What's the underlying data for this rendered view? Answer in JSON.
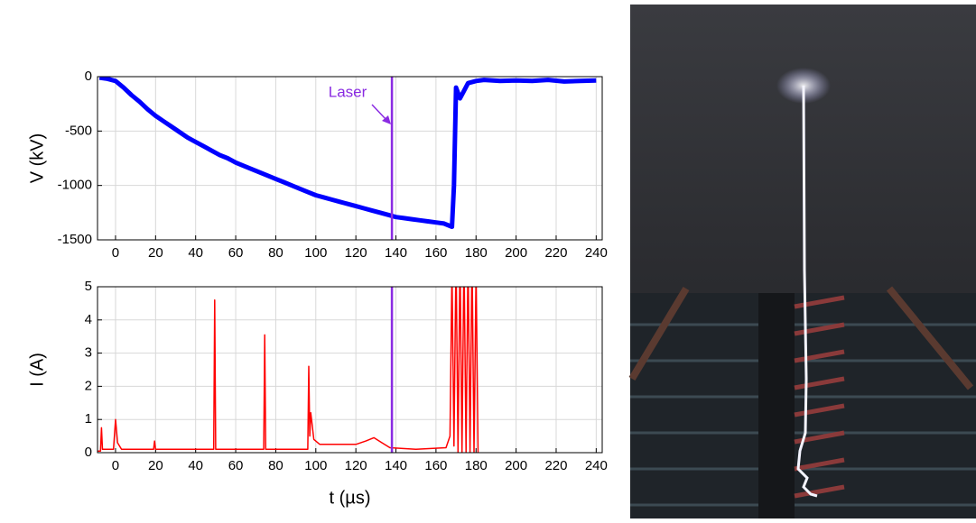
{
  "chart_data": [
    {
      "type": "line",
      "ylabel": "V (kV)",
      "annotation": "Laser",
      "vline_x": 138,
      "vline_color": "#8a2be2",
      "xlim": [
        -9,
        243
      ],
      "xticks": [
        0,
        20,
        40,
        60,
        80,
        100,
        120,
        140,
        160,
        180,
        200,
        220,
        240
      ],
      "ylim": [
        -1500,
        0
      ],
      "yticks": [
        0,
        -500,
        -1000,
        -1500
      ],
      "grid": true,
      "x": [
        -8,
        -4,
        0,
        4,
        8,
        12,
        16,
        20,
        24,
        28,
        32,
        36,
        40,
        44,
        48,
        52,
        56,
        60,
        64,
        68,
        72,
        76,
        80,
        84,
        88,
        92,
        96,
        100,
        104,
        108,
        112,
        116,
        120,
        124,
        128,
        132,
        136,
        140,
        144,
        148,
        152,
        156,
        160,
        164,
        168,
        169,
        170,
        172,
        176,
        180,
        184,
        192,
        200,
        208,
        216,
        224,
        232,
        240
      ],
      "series": [
        {
          "color": "#0000ff",
          "values": [
            -10,
            -20,
            -40,
            -100,
            -170,
            -230,
            -300,
            -360,
            -410,
            -460,
            -510,
            -560,
            -600,
            -640,
            -680,
            -720,
            -750,
            -790,
            -820,
            -850,
            -880,
            -910,
            -940,
            -970,
            -1000,
            -1030,
            -1060,
            -1090,
            -1110,
            -1130,
            -1150,
            -1170,
            -1190,
            -1210,
            -1230,
            -1250,
            -1270,
            -1290,
            -1300,
            -1310,
            -1320,
            -1330,
            -1340,
            -1350,
            -1380,
            -1000,
            -100,
            -200,
            -60,
            -40,
            -30,
            -40,
            -35,
            -40,
            -30,
            -45,
            -40,
            -35
          ]
        }
      ]
    },
    {
      "type": "line",
      "ylabel": "I (A)",
      "xlabel": "t (µs)",
      "vline_x": 138,
      "vline_color": "#8a2be2",
      "xlim": [
        -9,
        243
      ],
      "xticks": [
        0,
        20,
        40,
        60,
        80,
        100,
        120,
        140,
        160,
        180,
        200,
        220,
        240
      ],
      "ylim": [
        0,
        5
      ],
      "yticks": [
        0,
        1,
        2,
        3,
        4,
        5
      ],
      "grid": true,
      "x": [
        -9,
        -7.5,
        -7,
        -6.5,
        -1,
        0,
        1,
        3,
        19,
        19.5,
        20,
        49,
        49.5,
        50,
        74,
        74.5,
        75,
        96,
        96.5,
        97,
        97.5,
        99,
        102,
        120,
        125,
        129,
        133,
        137,
        150,
        165,
        167,
        168,
        169,
        170,
        171,
        172,
        173,
        174,
        175,
        176,
        177,
        178,
        179,
        180,
        181
      ],
      "series": [
        {
          "color": "#ff0000",
          "values": [
            0.05,
            0.05,
            0.75,
            0.1,
            0.1,
            1.0,
            0.3,
            0.1,
            0.1,
            0.35,
            0.1,
            0.1,
            4.6,
            0.1,
            0.1,
            3.55,
            0.1,
            0.1,
            2.6,
            0.5,
            1.2,
            0.4,
            0.25,
            0.25,
            0.35,
            0.45,
            0.3,
            0.15,
            0.1,
            0.15,
            0.5,
            5.5,
            0.2,
            6,
            0,
            6,
            0,
            6,
            0,
            6,
            0,
            6,
            0,
            5.5,
            0
          ]
        }
      ]
    }
  ]
}
